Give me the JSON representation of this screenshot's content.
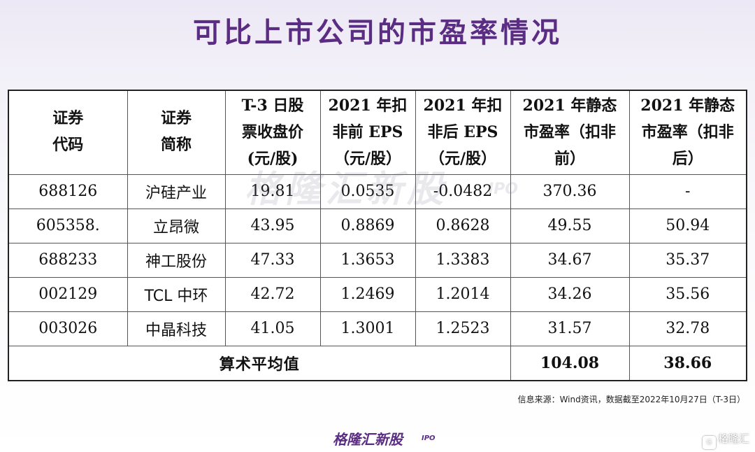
{
  "title": "可比上市公司的市盈率情况",
  "table": {
    "headers": [
      [
        "证券",
        "代码"
      ],
      [
        "证券",
        "简称"
      ],
      [
        "T-3 日股",
        "票收盘价",
        "(元/股)"
      ],
      [
        "2021 年扣",
        "非前 EPS",
        "（元/股）"
      ],
      [
        "2021 年扣",
        "非后 EPS",
        "（元/股）"
      ],
      [
        "2021 年静态",
        "市盈率（扣非",
        "前）"
      ],
      [
        "2021 年静态",
        "市盈率（扣非",
        "后）"
      ]
    ],
    "rows": [
      [
        "688126",
        "沪硅产业",
        "19.81",
        "0.0535",
        "-0.0482",
        "370.36",
        "-"
      ],
      [
        "605358.",
        "立昂微",
        "43.95",
        "0.8869",
        "0.8628",
        "49.55",
        "50.94"
      ],
      [
        "688233",
        "神工股份",
        "47.33",
        "1.3653",
        "1.3383",
        "34.67",
        "35.37"
      ],
      [
        "002129",
        "TCL 中环",
        "42.72",
        "1.2469",
        "1.2014",
        "34.26",
        "35.56"
      ],
      [
        "003026",
        "中晶科技",
        "41.05",
        "1.3001",
        "1.2523",
        "31.57",
        "32.78"
      ]
    ],
    "average": {
      "label": "算术平均值",
      "pe_before": "104.08",
      "pe_after": "38.66"
    }
  },
  "source_note": "信息来源：Wind资讯，数据截至2022年10月27日（T-3日）",
  "watermark": {
    "text": "格隆汇新股",
    "suffix": "IPO"
  },
  "brand": {
    "text": "格隆汇新股",
    "suffix": "IPO"
  },
  "corner_mark": {
    "icon": "gelonghui-logo-icon",
    "text": "格隆汇"
  },
  "colors": {
    "title": "#5b2d82",
    "brand": "#5b2d82"
  }
}
